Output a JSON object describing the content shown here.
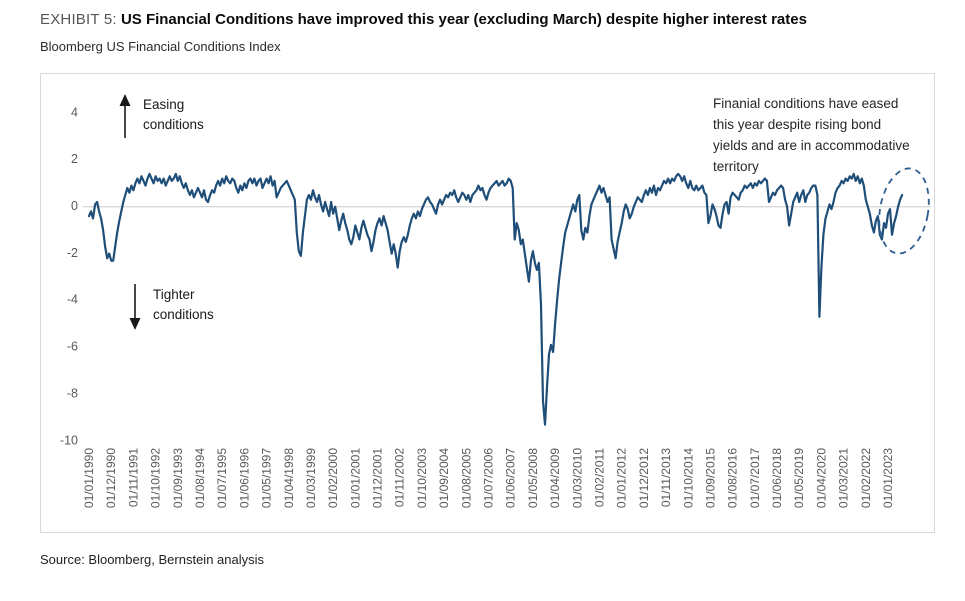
{
  "exhibit": {
    "label": "EXHIBIT 5:",
    "title": "US Financial Conditions have improved this year (excluding March) despite higher interest rates"
  },
  "subtitle": "Bloomberg US Financial Conditions Index",
  "source": "Source: Bloomberg, Bernstein analysis",
  "annotations": {
    "easing_label": "Easing\nconditions",
    "tighter_label": "Tighter\nconditions",
    "callout": "Finanial conditions have eased this year despite rising bond yields and are in accommodative territory",
    "highlight": "dashed ellipse circling 2022-2023 data"
  },
  "chart_data": {
    "type": "line",
    "title": "Bloomberg US Financial Conditions Index",
    "xlabel": "",
    "ylabel": "",
    "ylim": [
      -10,
      4
    ],
    "yticks": [
      4,
      2,
      0,
      -2,
      -4,
      -6,
      -8,
      -10
    ],
    "grid": "horizontal zero line only",
    "legend": "none",
    "x_start": "01/1990",
    "frequency": "monthly",
    "x_tick_labels": [
      "01/01/1990",
      "01/12/1990",
      "01/11/1991",
      "01/10/1992",
      "01/09/1993",
      "01/08/1994",
      "01/07/1995",
      "01/06/1996",
      "01/05/1997",
      "01/04/1998",
      "01/03/1999",
      "01/02/2000",
      "01/01/2001",
      "01/12/2001",
      "01/11/2002",
      "01/10/2003",
      "01/09/2004",
      "01/08/2005",
      "01/07/2006",
      "01/06/2007",
      "01/05/2008",
      "01/04/2009",
      "01/03/2010",
      "01/02/2011",
      "01/01/2012",
      "01/12/2012",
      "01/11/2013",
      "01/10/2014",
      "01/09/2015",
      "01/08/2016",
      "01/07/2017",
      "01/06/2018",
      "01/05/2019",
      "01/04/2020",
      "01/03/2021",
      "01/02/2022",
      "01/01/2023"
    ],
    "values": [
      -0.4,
      -0.2,
      -0.5,
      0.1,
      0.2,
      -0.2,
      -0.5,
      -1.0,
      -1.7,
      -2.2,
      -2.0,
      -2.3,
      -2.3,
      -1.7,
      -1.1,
      -0.6,
      -0.2,
      0.2,
      0.5,
      0.8,
      0.6,
      0.9,
      0.7,
      1.0,
      1.2,
      1.0,
      1.3,
      1.1,
      0.9,
      1.2,
      1.4,
      1.2,
      1.0,
      1.3,
      1.1,
      1.2,
      1.0,
      1.2,
      0.9,
      1.1,
      1.3,
      1.1,
      1.2,
      1.4,
      1.1,
      1.3,
      1.0,
      0.8,
      1.0,
      0.7,
      0.5,
      0.7,
      0.4,
      0.6,
      0.8,
      0.6,
      0.4,
      0.7,
      0.3,
      0.2,
      0.5,
      0.7,
      0.6,
      0.9,
      1.1,
      0.9,
      1.2,
      1.0,
      1.3,
      1.1,
      1.0,
      1.2,
      1.1,
      0.8,
      0.6,
      0.9,
      0.7,
      1.0,
      0.8,
      1.1,
      1.2,
      1.0,
      1.2,
      0.9,
      1.1,
      1.2,
      0.8,
      1.0,
      1.2,
      1.0,
      1.3,
      0.9,
      1.1,
      0.4,
      0.6,
      0.8,
      0.9,
      1.0,
      1.1,
      0.9,
      0.7,
      0.5,
      0.3,
      -1.1,
      -1.9,
      -2.1,
      -1.1,
      -0.4,
      0.3,
      0.5,
      0.3,
      0.7,
      0.4,
      0.2,
      0.5,
      0.1,
      -0.2,
      0.2,
      -0.1,
      -0.4,
      0.2,
      -0.3,
      0.0,
      -0.5,
      -1.0,
      -0.6,
      -0.3,
      -0.7,
      -1.0,
      -1.4,
      -1.6,
      -1.3,
      -0.8,
      -1.1,
      -1.4,
      -0.9,
      -0.6,
      -0.9,
      -1.2,
      -1.4,
      -1.9,
      -1.5,
      -1.0,
      -0.7,
      -0.5,
      -0.8,
      -0.4,
      -0.7,
      -1.0,
      -1.5,
      -2.0,
      -1.6,
      -2.0,
      -2.6,
      -1.9,
      -1.5,
      -1.3,
      -1.5,
      -1.2,
      -0.8,
      -0.5,
      -0.3,
      -0.5,
      -0.2,
      -0.4,
      -0.1,
      0.1,
      0.3,
      0.4,
      0.2,
      0.1,
      -0.1,
      -0.3,
      0.1,
      0.3,
      0.1,
      0.3,
      0.5,
      0.4,
      0.6,
      0.5,
      0.7,
      0.4,
      0.2,
      0.4,
      0.6,
      0.5,
      0.3,
      0.5,
      0.2,
      0.5,
      0.6,
      0.7,
      0.9,
      0.7,
      0.8,
      0.5,
      0.3,
      0.6,
      0.8,
      0.9,
      1.0,
      1.1,
      0.9,
      1.0,
      1.1,
      0.9,
      1.0,
      1.2,
      1.1,
      0.8,
      -1.4,
      -0.7,
      -1.0,
      -1.6,
      -1.4,
      -2.0,
      -2.6,
      -3.2,
      -2.3,
      -1.9,
      -2.4,
      -2.7,
      -2.4,
      -4.2,
      -8.3,
      -9.3,
      -7.7,
      -6.3,
      -5.9,
      -6.2,
      -5.0,
      -4.0,
      -3.1,
      -2.4,
      -1.7,
      -1.1,
      -0.8,
      -0.5,
      -0.2,
      0.1,
      -0.2,
      0.3,
      0.5,
      -1.0,
      -1.4,
      -0.9,
      -1.1,
      -0.4,
      0.1,
      0.3,
      0.5,
      0.7,
      0.9,
      0.6,
      0.8,
      0.5,
      0.2,
      0.4,
      -1.4,
      -1.8,
      -2.2,
      -1.5,
      -1.1,
      -0.7,
      -0.2,
      0.1,
      -0.1,
      -0.5,
      -0.3,
      0.0,
      0.2,
      0.4,
      0.3,
      0.2,
      0.5,
      0.7,
      0.5,
      0.8,
      0.6,
      0.9,
      0.5,
      0.8,
      0.7,
      0.9,
      1.1,
      1.0,
      1.2,
      1.0,
      1.2,
      1.1,
      1.3,
      1.4,
      1.3,
      1.1,
      1.3,
      1.0,
      0.8,
      1.1,
      0.8,
      0.7,
      0.9,
      0.7,
      0.8,
      0.9,
      0.6,
      0.5,
      -0.7,
      -0.4,
      0.1,
      -0.1,
      -0.4,
      -0.8,
      -0.9,
      -0.3,
      0.1,
      0.2,
      -0.3,
      0.4,
      0.6,
      0.5,
      0.4,
      0.3,
      0.6,
      0.7,
      0.9,
      0.8,
      0.9,
      1.0,
      0.8,
      1.0,
      0.9,
      1.1,
      1.0,
      1.1,
      1.2,
      1.1,
      0.2,
      0.4,
      0.6,
      0.5,
      0.7,
      0.8,
      0.9,
      0.8,
      0.3,
      0.0,
      -0.8,
      -0.3,
      0.2,
      0.4,
      0.6,
      0.2,
      0.5,
      0.7,
      0.2,
      0.5,
      0.6,
      0.8,
      0.9,
      0.9,
      0.5,
      -4.7,
      -2.6,
      -1.2,
      -0.5,
      -0.2,
      0.1,
      -0.1,
      0.2,
      0.6,
      0.8,
      0.9,
      1.1,
      1.0,
      1.2,
      1.1,
      1.3,
      1.2,
      1.4,
      1.1,
      1.3,
      1.0,
      1.2,
      0.9,
      0.3,
      0.0,
      -0.3,
      -0.8,
      -1.1,
      -0.6,
      -0.4,
      -1.2,
      -1.4,
      -0.7,
      -0.9,
      -0.3,
      -0.1,
      -1.2,
      -0.7,
      -0.4,
      0.0,
      0.3,
      0.5
    ],
    "colors": {
      "line": "#1F4E79",
      "ellipse": "#2E5E8E",
      "grid": "#D9D9D9",
      "tick_text": "#595959",
      "border": "#D9D9D9"
    }
  }
}
